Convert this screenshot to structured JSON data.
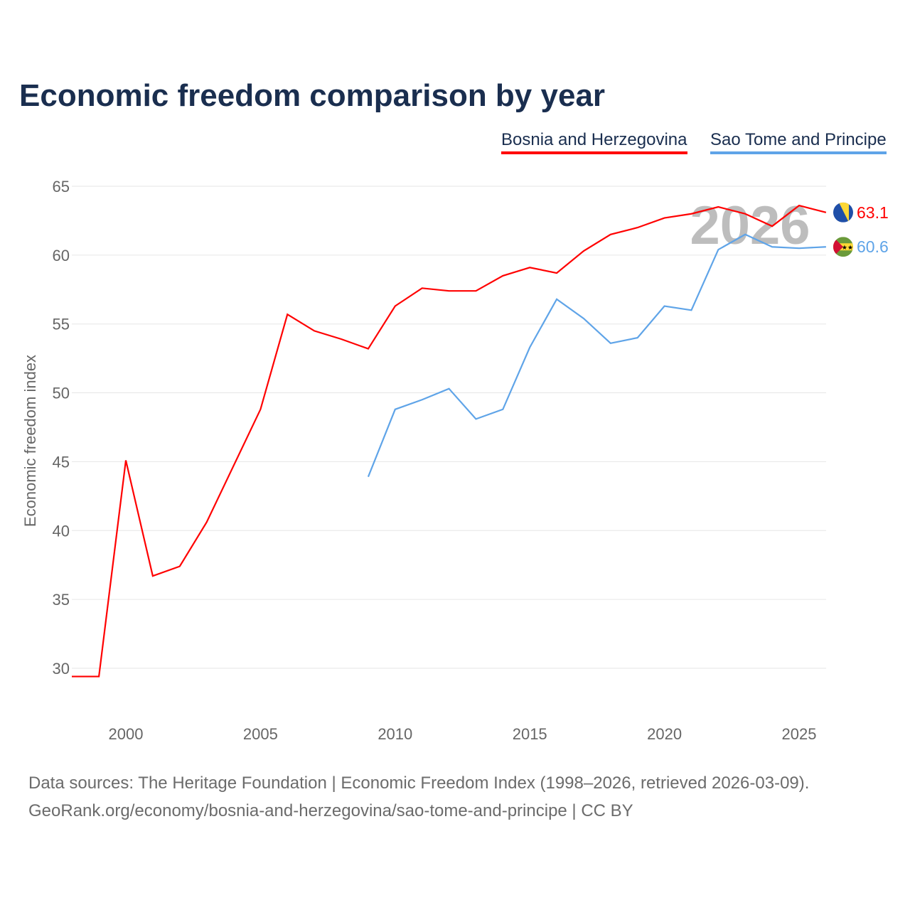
{
  "title": "Economic freedom comparison by year",
  "legend": [
    "Bosnia and Herzegovina",
    "Sao Tome and Principe"
  ],
  "footer": {
    "line1": "Data sources: The Heritage Foundation | Economic Freedom Index (1998–2026, retrieved 2026-03-09).",
    "line2": "GeoRank.org/economy/bosnia-and-herzegovina/sao-tome-and-principe | CC BY"
  },
  "chart_data": {
    "type": "line",
    "title": "Economic freedom comparison by year",
    "ylabel": "Economic freedom index",
    "xlabel": "",
    "year_watermark": "2026",
    "ylim": [
      27,
      65
    ],
    "xlim": [
      1998,
      2026
    ],
    "yticks": [
      30,
      35,
      40,
      45,
      50,
      55,
      60,
      65
    ],
    "xticks": [
      2000,
      2005,
      2010,
      2015,
      2020,
      2025
    ],
    "series": [
      {
        "name": "Bosnia and Herzegovina",
        "color": "#ff0000",
        "end_label": "63.1",
        "x": [
          1998,
          1999,
          2000,
          2001,
          2002,
          2003,
          2004,
          2005,
          2006,
          2007,
          2008,
          2009,
          2010,
          2011,
          2012,
          2013,
          2014,
          2015,
          2016,
          2017,
          2018,
          2019,
          2020,
          2021,
          2022,
          2023,
          2024,
          2025,
          2026
        ],
        "y": [
          29.4,
          29.4,
          45.1,
          36.7,
          37.4,
          40.6,
          44.7,
          48.8,
          55.7,
          54.5,
          53.9,
          53.2,
          56.3,
          57.6,
          57.4,
          57.4,
          58.5,
          59.1,
          58.7,
          60.3,
          61.5,
          62.0,
          62.7,
          63.0,
          63.5,
          63.0,
          62.1,
          63.6,
          63.1
        ]
      },
      {
        "name": "Sao Tome and Principe",
        "color": "#5fa4e8",
        "end_label": "60.6",
        "x": [
          2009,
          2010,
          2011,
          2012,
          2013,
          2014,
          2015,
          2016,
          2017,
          2018,
          2019,
          2020,
          2021,
          2022,
          2023,
          2024,
          2025,
          2026
        ],
        "y": [
          43.9,
          48.8,
          49.5,
          50.3,
          48.1,
          48.8,
          53.3,
          56.8,
          55.4,
          53.6,
          54.0,
          56.3,
          56.0,
          60.4,
          61.5,
          60.6,
          60.5,
          60.6
        ]
      }
    ]
  }
}
